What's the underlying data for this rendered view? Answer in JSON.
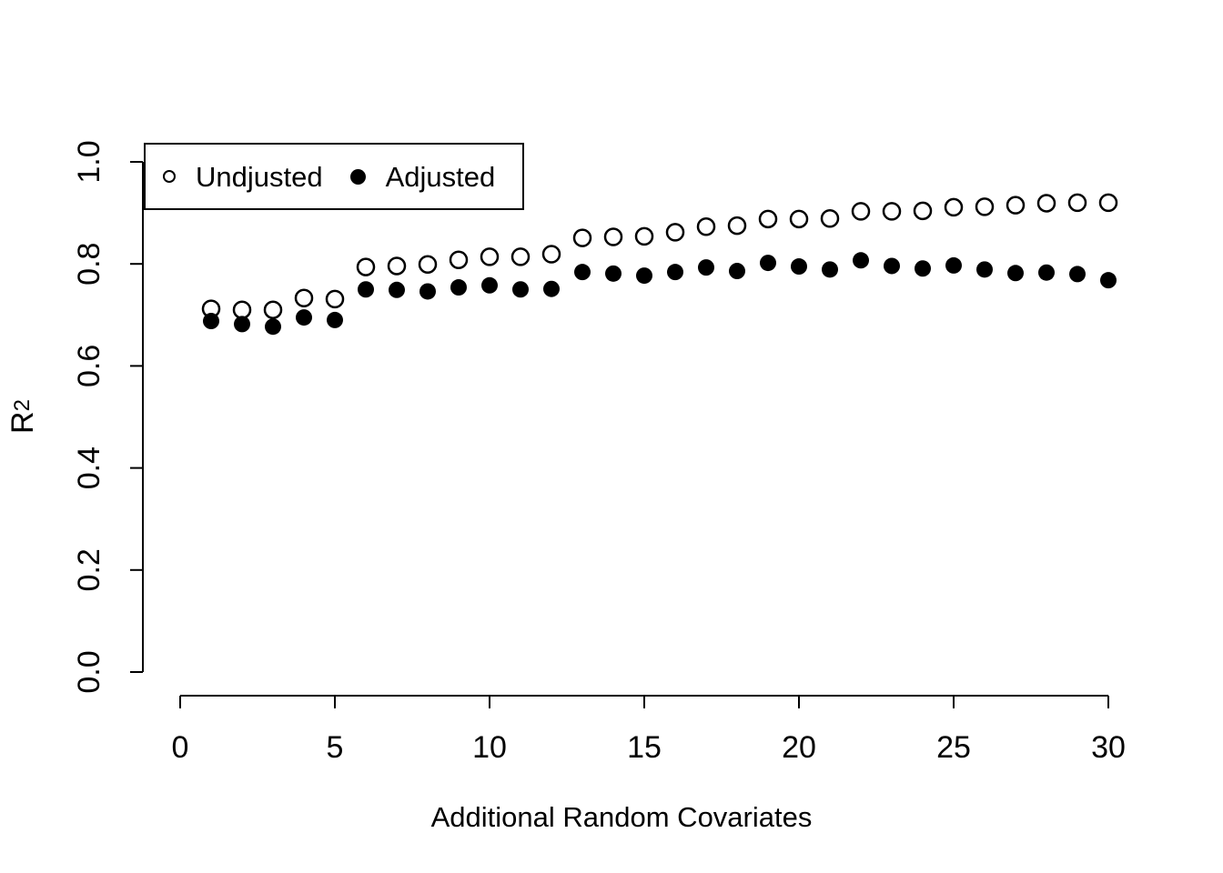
{
  "chart_data": {
    "type": "scatter",
    "title": "",
    "xlabel": "Additional Random Covariates",
    "ylabel": "R²",
    "ylabel_base": "R",
    "ylabel_exponent": "2",
    "xlim": [
      0,
      30
    ],
    "ylim": [
      0.0,
      1.0
    ],
    "x_ticks": [
      0,
      5,
      10,
      15,
      20,
      25,
      30
    ],
    "y_ticks": [
      "0.0",
      "0.2",
      "0.4",
      "0.6",
      "0.8",
      "1.0"
    ],
    "grid": false,
    "legend_position": "top-left",
    "background_color": "#ffffff",
    "foreground_color": "#000000",
    "x": [
      1,
      2,
      3,
      4,
      5,
      6,
      7,
      8,
      9,
      10,
      11,
      12,
      13,
      14,
      15,
      16,
      17,
      18,
      19,
      20,
      21,
      22,
      23,
      24,
      25,
      26,
      27,
      28,
      29,
      30
    ],
    "series": [
      {
        "name": "Undjusted",
        "marker": "open-circle",
        "values": [
          0.712,
          0.71,
          0.71,
          0.733,
          0.731,
          0.794,
          0.796,
          0.799,
          0.808,
          0.814,
          0.814,
          0.819,
          0.851,
          0.853,
          0.854,
          0.862,
          0.873,
          0.875,
          0.888,
          0.888,
          0.889,
          0.903,
          0.903,
          0.904,
          0.911,
          0.912,
          0.915,
          0.919,
          0.92,
          0.92
        ]
      },
      {
        "name": "Adjusted",
        "marker": "filled-circle",
        "values": [
          0.688,
          0.682,
          0.677,
          0.695,
          0.69,
          0.75,
          0.749,
          0.746,
          0.754,
          0.758,
          0.75,
          0.751,
          0.784,
          0.781,
          0.777,
          0.784,
          0.793,
          0.786,
          0.802,
          0.795,
          0.789,
          0.807,
          0.796,
          0.791,
          0.797,
          0.789,
          0.782,
          0.783,
          0.78,
          0.768
        ]
      }
    ]
  }
}
